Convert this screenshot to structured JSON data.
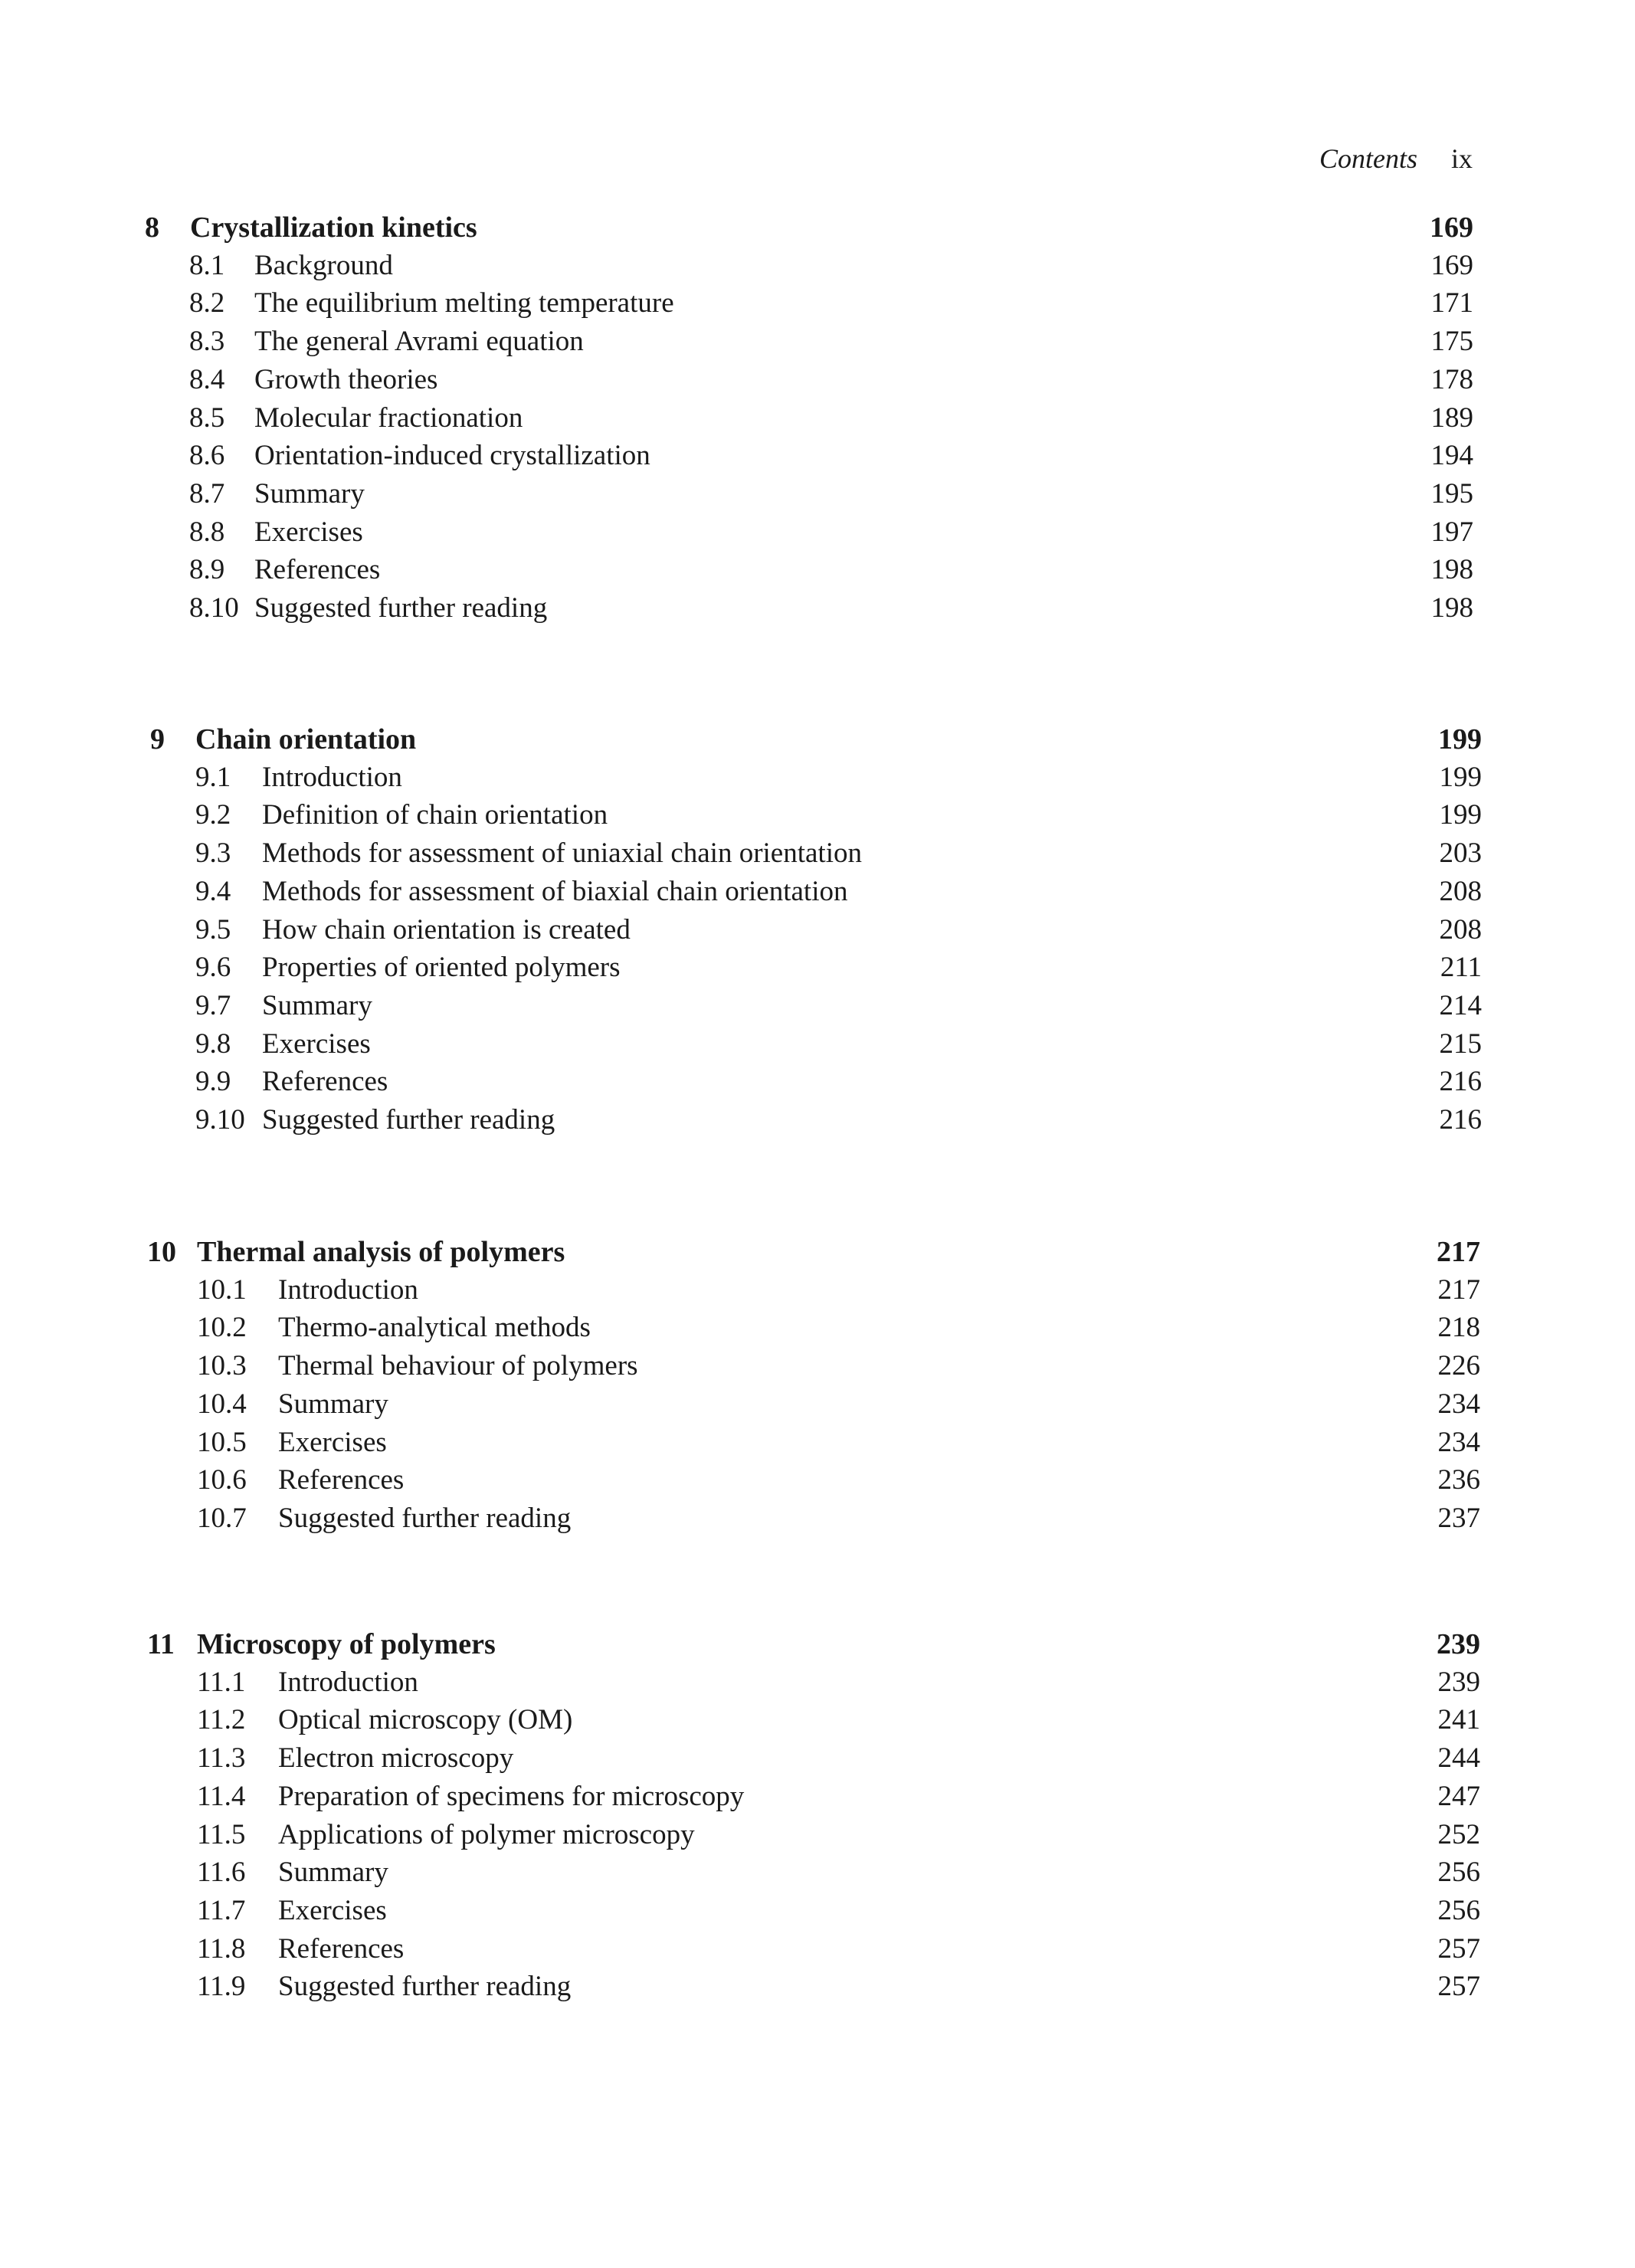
{
  "header": {
    "section": "Contents",
    "page": "ix"
  },
  "chapters": [
    {
      "number": "8",
      "title": "Crystallization kinetics",
      "page": "169",
      "sections": [
        {
          "number": "8.1",
          "title": "Background",
          "page": "169"
        },
        {
          "number": "8.2",
          "title": "The equilibrium melting temperature",
          "page": "171"
        },
        {
          "number": "8.3",
          "title": "The general Avrami equation",
          "page": "175"
        },
        {
          "number": "8.4",
          "title": "Growth theories",
          "page": "178"
        },
        {
          "number": "8.5",
          "title": "Molecular fractionation",
          "page": "189"
        },
        {
          "number": "8.6",
          "title": "Orientation-induced crystallization",
          "page": "194"
        },
        {
          "number": "8.7",
          "title": "Summary",
          "page": "195"
        },
        {
          "number": "8.8",
          "title": "Exercises",
          "page": "197"
        },
        {
          "number": "8.9",
          "title": "References",
          "page": "198"
        },
        {
          "number": "8.10",
          "title": "Suggested further reading",
          "page": "198"
        }
      ]
    },
    {
      "number": "9",
      "title": "Chain orientation",
      "page": "199",
      "sections": [
        {
          "number": "9.1",
          "title": "Introduction",
          "page": "199"
        },
        {
          "number": "9.2",
          "title": "Definition of chain orientation",
          "page": "199"
        },
        {
          "number": "9.3",
          "title": "Methods for assessment of uniaxial chain orientation",
          "page": "203"
        },
        {
          "number": "9.4",
          "title": "Methods for assessment of biaxial chain orientation",
          "page": "208"
        },
        {
          "number": "9.5",
          "title": "How chain orientation is created",
          "page": "208"
        },
        {
          "number": "9.6",
          "title": "Properties of oriented polymers",
          "page": "211"
        },
        {
          "number": "9.7",
          "title": "Summary",
          "page": "214"
        },
        {
          "number": "9.8",
          "title": "Exercises",
          "page": "215"
        },
        {
          "number": "9.9",
          "title": "References",
          "page": "216"
        },
        {
          "number": "9.10",
          "title": "Suggested further reading",
          "page": "216"
        }
      ]
    },
    {
      "number": "10",
      "title": "Thermal analysis of polymers",
      "page": "217",
      "sections": [
        {
          "number": "10.1",
          "title": "Introduction",
          "page": "217"
        },
        {
          "number": "10.2",
          "title": "Thermo-analytical methods",
          "page": "218"
        },
        {
          "number": "10.3",
          "title": "Thermal behaviour of polymers",
          "page": "226"
        },
        {
          "number": "10.4",
          "title": "Summary",
          "page": "234"
        },
        {
          "number": "10.5",
          "title": "Exercises",
          "page": "234"
        },
        {
          "number": "10.6",
          "title": "References",
          "page": "236"
        },
        {
          "number": "10.7",
          "title": "Suggested further reading",
          "page": "237"
        }
      ]
    },
    {
      "number": "11",
      "title": "Microscopy of polymers",
      "page": "239",
      "sections": [
        {
          "number": "11.1",
          "title": "Introduction",
          "page": "239"
        },
        {
          "number": "11.2",
          "title": "Optical microscopy (OM)",
          "page": "241"
        },
        {
          "number": "11.3",
          "title": "Electron microscopy",
          "page": "244"
        },
        {
          "number": "11.4",
          "title": "Preparation of specimens for microscopy",
          "page": "247"
        },
        {
          "number": "11.5",
          "title": "Applications of polymer microscopy",
          "page": "252"
        },
        {
          "number": "11.6",
          "title": "Summary",
          "page": "256"
        },
        {
          "number": "11.7",
          "title": "Exercises",
          "page": "256"
        },
        {
          "number": "11.8",
          "title": "References",
          "page": "257"
        },
        {
          "number": "11.9",
          "title": "Suggested further reading",
          "page": "257"
        }
      ]
    }
  ]
}
